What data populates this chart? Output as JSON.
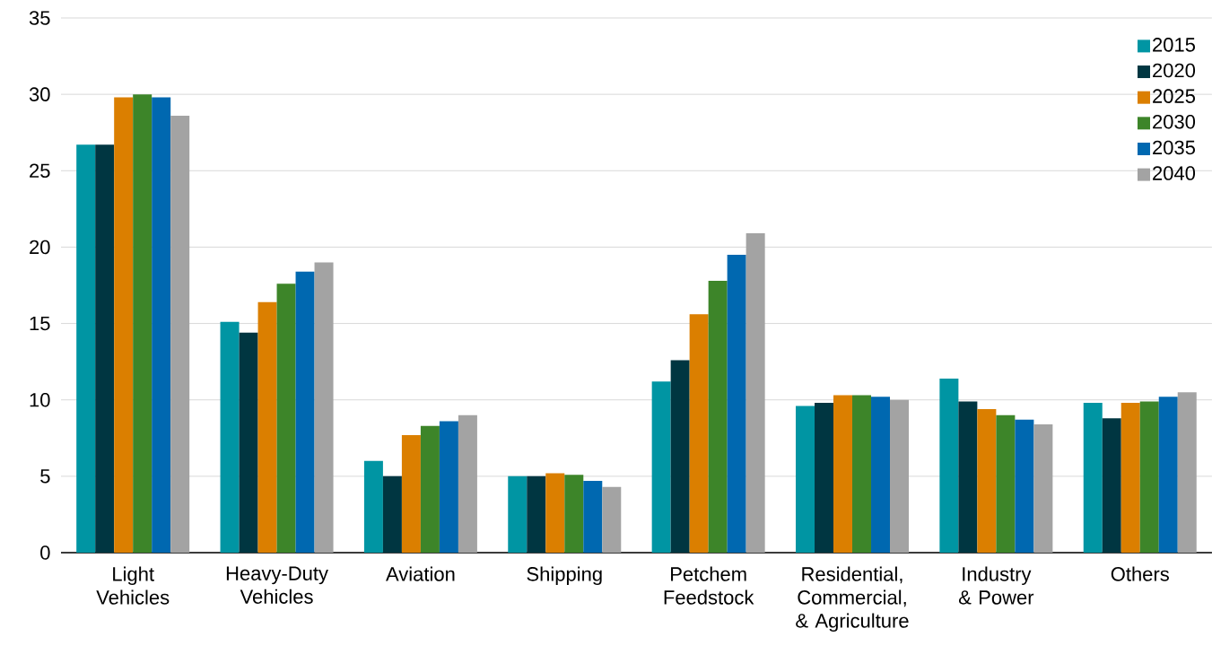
{
  "chart_data": {
    "type": "bar",
    "categories": [
      "Light Vehicles",
      "Heavy-Duty Vehicles",
      "Aviation",
      "Shipping",
      "Petchem Feedstock",
      "Residential, Commercial, & Agriculture",
      "Industry & Power",
      "Others"
    ],
    "series": [
      {
        "name": "2015",
        "color": "#0095a3",
        "values": [
          26.7,
          15.1,
          6.0,
          5.0,
          11.2,
          9.6,
          11.4,
          9.8
        ]
      },
      {
        "name": "2020",
        "color": "#003641",
        "values": [
          26.7,
          14.4,
          5.0,
          5.0,
          12.6,
          9.8,
          9.9,
          8.8
        ]
      },
      {
        "name": "2025",
        "color": "#db7f00",
        "values": [
          29.8,
          16.4,
          7.7,
          5.2,
          15.6,
          10.3,
          9.4,
          9.8
        ]
      },
      {
        "name": "2030",
        "color": "#3d8529",
        "values": [
          30.0,
          17.6,
          8.3,
          5.1,
          17.8,
          10.3,
          9.0,
          9.9
        ]
      },
      {
        "name": "2035",
        "color": "#0068b0",
        "values": [
          29.8,
          18.4,
          8.6,
          4.7,
          19.5,
          10.2,
          8.7,
          10.2
        ]
      },
      {
        "name": "2040",
        "color": "#a3a3a3",
        "values": [
          28.6,
          19.0,
          9.0,
          4.3,
          20.9,
          10.0,
          8.4,
          10.5
        ]
      }
    ],
    "ylim": [
      0,
      35
    ],
    "yticks": [
      0,
      5,
      10,
      15,
      20,
      25,
      30,
      35
    ],
    "grid": "y",
    "legend": "top right"
  }
}
